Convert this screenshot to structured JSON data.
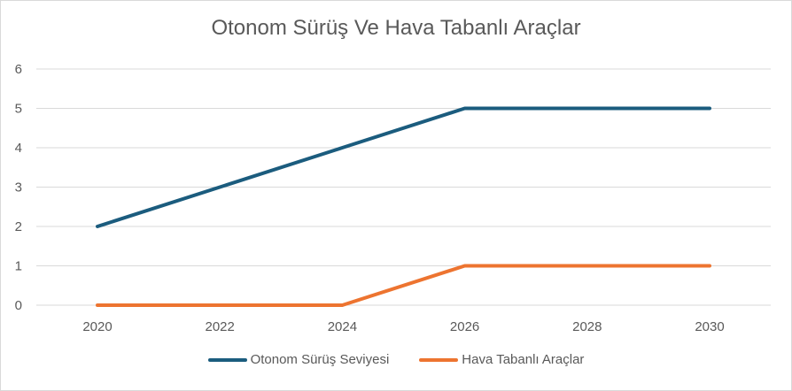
{
  "chart_data": {
    "type": "line",
    "title": "Otonom Sürüş Ve Hava Tabanlı Araçlar",
    "x": [
      2020,
      2022,
      2024,
      2026,
      2028,
      2030
    ],
    "x_tick_labels": [
      "2020",
      "2022",
      "2024",
      "2026",
      "2028",
      "2030"
    ],
    "ylim": [
      0,
      6
    ],
    "y_ticks": [
      0,
      1,
      2,
      3,
      4,
      5,
      6
    ],
    "grid": "horizontal",
    "legend_position": "bottom",
    "series": [
      {
        "name": "Otonom Sürüş Seviyesi",
        "color": "#1b5c7e",
        "values": [
          2,
          3,
          4,
          5,
          5,
          5
        ]
      },
      {
        "name": "Hava Tabanlı Araçlar",
        "color": "#ed7430",
        "values": [
          0,
          0,
          0,
          1,
          1,
          1
        ]
      }
    ]
  }
}
